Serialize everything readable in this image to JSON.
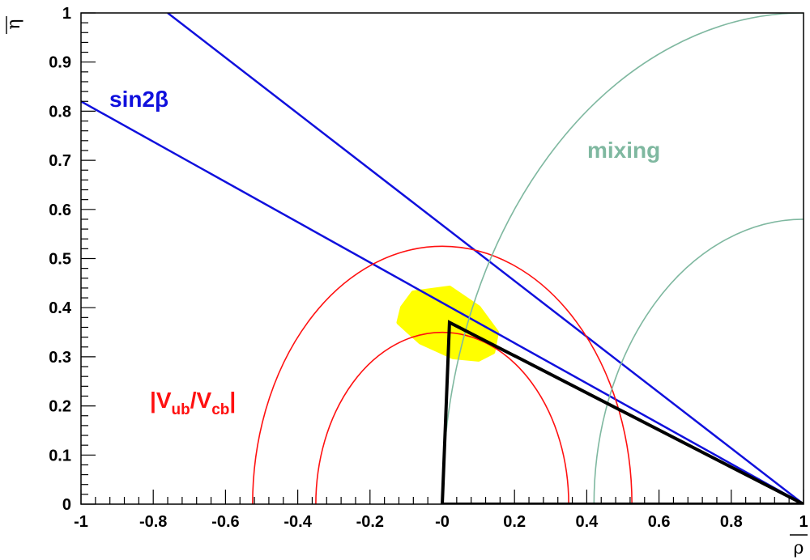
{
  "chart_data": {
    "type": "line",
    "xlabel": "ρ",
    "ylabel": "η",
    "xlim": [
      -1,
      1
    ],
    "ylim": [
      0,
      1
    ],
    "x_ticks": [
      "-1",
      "-0.8",
      "-0.6",
      "-0.4",
      "-0.2",
      "-0",
      "0.2",
      "0.4",
      "0.6",
      "0.8",
      "1"
    ],
    "y_ticks": [
      "0",
      "0.1",
      "0.2",
      "0.3",
      "0.4",
      "0.5",
      "0.6",
      "0.7",
      "0.8",
      "0.9",
      "1"
    ],
    "grid": false,
    "annotations": {
      "sin2beta": "sin2β",
      "mixing": "mixing",
      "vub_main": "|V",
      "vub_sub1": "ub",
      "vub_mid": "/V",
      "vub_sub2": "cb",
      "vub_end": "|"
    },
    "colors": {
      "sin2beta": "#1010dd",
      "mixing": "#7fb8a0",
      "vub_vcb": "#ff1010",
      "triangle": "#000000",
      "region": "#ffff00"
    },
    "series": [
      {
        "name": "sin2β",
        "kind": "line",
        "points": [
          [
            -0.76,
            1.0
          ],
          [
            1.0,
            0.0
          ]
        ]
      },
      {
        "name": "sin2β",
        "kind": "line",
        "points": [
          [
            -1.0,
            0.82
          ],
          [
            1.0,
            0.0
          ]
        ]
      },
      {
        "name": "|Vub/Vcb|",
        "kind": "circle",
        "center": [
          0,
          0
        ],
        "radius": 0.525
      },
      {
        "name": "|Vub/Vcb|",
        "kind": "circle",
        "center": [
          0,
          0
        ],
        "radius": 0.35
      },
      {
        "name": "mixing",
        "kind": "circle",
        "center": [
          1,
          0
        ],
        "radius": 1.0
      },
      {
        "name": "mixing",
        "kind": "circle",
        "center": [
          1,
          0
        ],
        "radius": 0.58
      },
      {
        "kind": "triangle",
        "points": [
          [
            0,
            0
          ],
          [
            1,
            0
          ],
          [
            0.02,
            0.37
          ]
        ]
      }
    ],
    "allowed_region": {
      "center": [
        0.03,
        0.365
      ],
      "points": [
        [
          -0.11,
          0.4
        ],
        [
          -0.08,
          0.43
        ],
        [
          0.02,
          0.44
        ],
        [
          0.1,
          0.4
        ],
        [
          0.15,
          0.35
        ],
        [
          0.14,
          0.31
        ],
        [
          0.1,
          0.295
        ],
        [
          0.03,
          0.3
        ],
        [
          -0.06,
          0.33
        ],
        [
          -0.12,
          0.37
        ]
      ]
    }
  }
}
